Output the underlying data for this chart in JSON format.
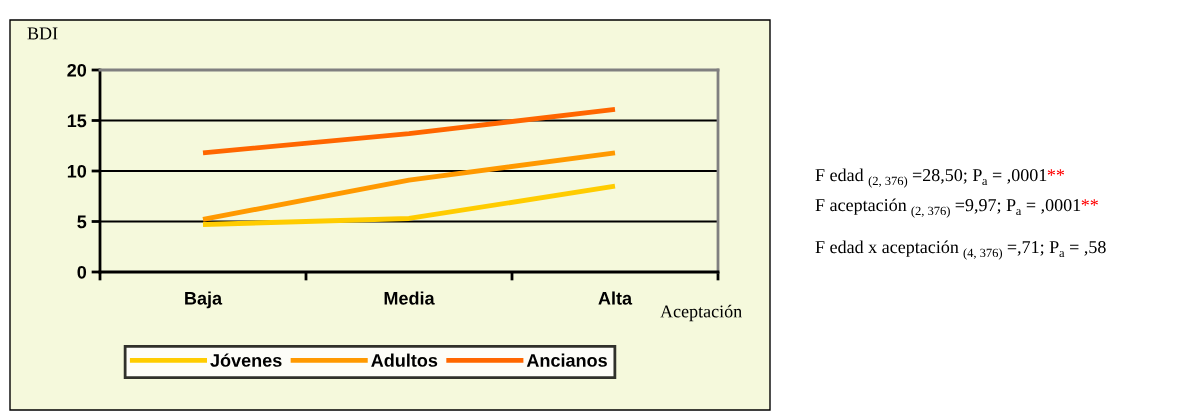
{
  "chart_data": {
    "type": "line",
    "ylabel": "BDI",
    "xlabel": "Aceptación",
    "categories": [
      "Baja",
      "Media",
      "Alta"
    ],
    "series": [
      {
        "name": "Jóvenes",
        "color": "#ffcc00",
        "values": [
          4.7,
          5.3,
          8.5
        ]
      },
      {
        "name": "Adultos",
        "color": "#ff9900",
        "values": [
          5.2,
          9.1,
          11.8
        ]
      },
      {
        "name": "Ancianos",
        "color": "#ff6600",
        "values": [
          11.8,
          13.7,
          16.1
        ]
      }
    ],
    "ylim": [
      0,
      20
    ],
    "yticks": [
      0,
      5,
      10,
      15,
      20
    ],
    "grid": "y",
    "legend": "bottom",
    "marker": "none",
    "line_style": "solid",
    "annotations": [
      "F edad $_{(2, 376)}$ =28,50; P$_{a}$ = ,0001**",
      "F aceptación $_{(2, 376)}$ =9,97; P$_{a}$ = ,0001**",
      "F edad x aceptación $_{(4, 376)}$ =,71; P$_{a}$ = ,58"
    ]
  }
}
